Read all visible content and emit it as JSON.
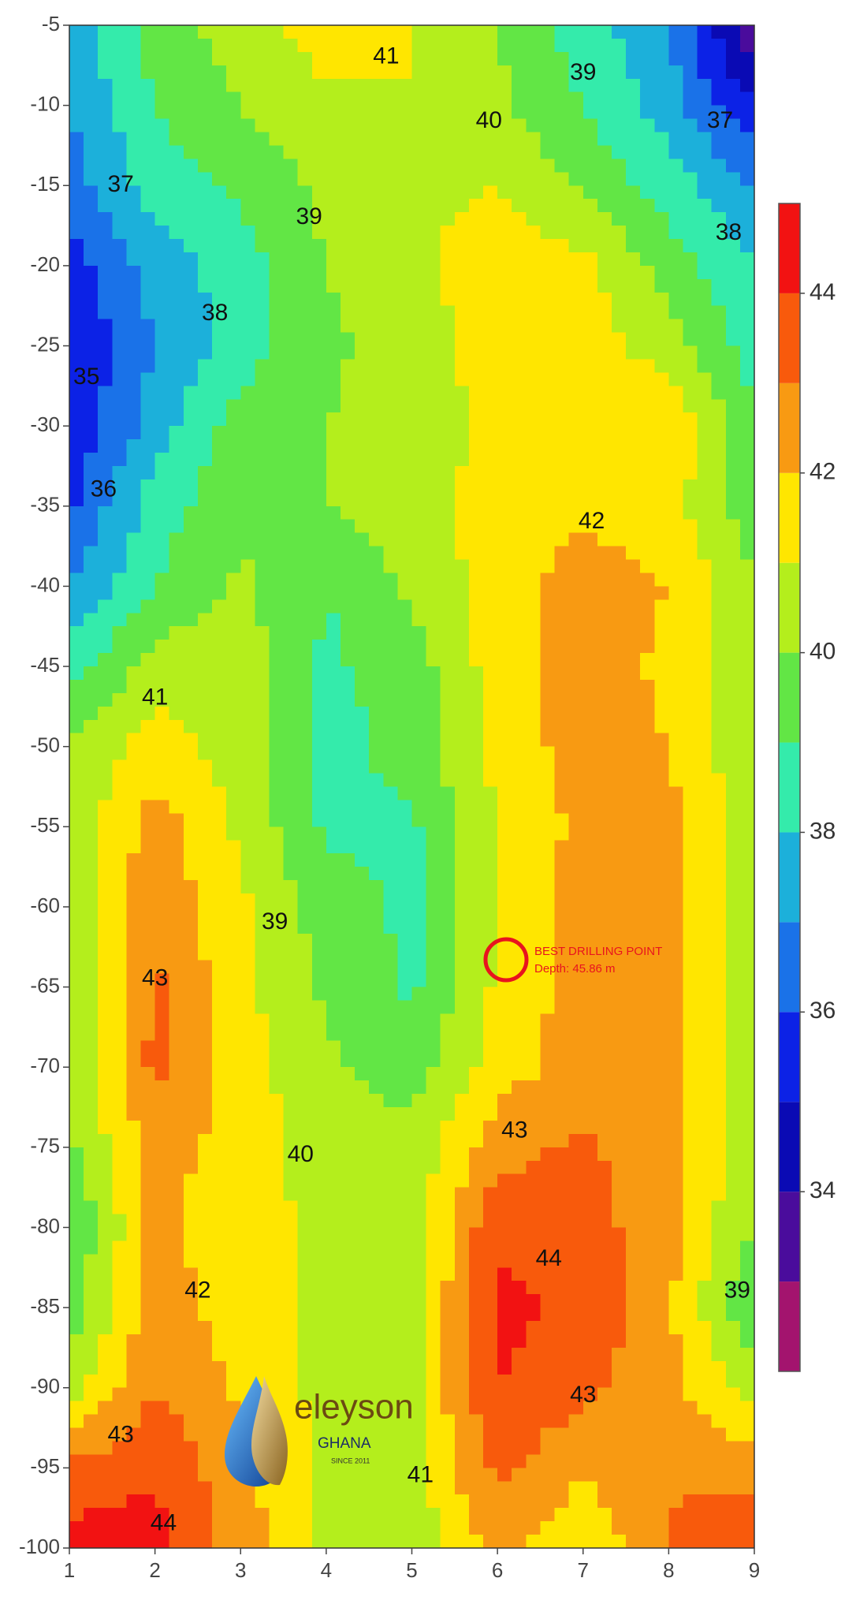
{
  "chart_data": {
    "type": "contour",
    "x": [
      1,
      2,
      3,
      4,
      5,
      6,
      7,
      8,
      9
    ],
    "y": [
      -5,
      -10,
      -15,
      -20,
      -25,
      -30,
      -35,
      -40,
      -45,
      -50,
      -55,
      -60,
      -65,
      -70,
      -75,
      -80,
      -85,
      -90,
      -95,
      -100
    ],
    "z": [
      [
        37.5,
        39.5,
        40.5,
        41.5,
        41,
        40,
        38.5,
        37,
        33
      ],
      [
        37,
        39,
        40,
        40.8,
        41,
        40.2,
        39,
        37.5,
        35
      ],
      [
        36.5,
        38.5,
        39.2,
        40.3,
        40.8,
        41,
        39.8,
        38.5,
        37
      ],
      [
        35.5,
        37.5,
        38.5,
        40,
        40.8,
        41.5,
        41.3,
        39.5,
        38
      ],
      [
        35,
        37,
        38.5,
        39.8,
        40.5,
        41.5,
        41.5,
        40.5,
        38.5
      ],
      [
        35.2,
        37.5,
        39.5,
        40,
        40.5,
        41.2,
        41.5,
        42,
        39
      ],
      [
        35.8,
        38.5,
        39.8,
        40,
        40.5,
        41.5,
        41.8,
        41.3,
        39.5
      ],
      [
        37,
        39,
        40.2,
        39,
        40.2,
        41.5,
        42.5,
        42,
        40
      ],
      [
        38.5,
        40.5,
        40.5,
        38.8,
        39.5,
        41.5,
        42.5,
        41.8,
        40.2
      ],
      [
        40,
        41.5,
        40.5,
        38.5,
        39.5,
        41.3,
        42.5,
        42,
        40.2
      ],
      [
        40.2,
        42.5,
        40.8,
        38.8,
        38.8,
        41,
        42.3,
        42.3,
        40.3
      ],
      [
        40.2,
        42.8,
        41.2,
        39.5,
        38.8,
        41,
        42.5,
        42.5,
        40.5
      ],
      [
        40,
        43.2,
        41.3,
        39.8,
        38.8,
        41.2,
        42.5,
        42.4,
        40.3
      ],
      [
        40,
        43.3,
        41.5,
        40.2,
        39.5,
        41.5,
        42.5,
        42.3,
        40.3
      ],
      [
        39.8,
        42.5,
        41.5,
        40.6,
        40.3,
        42.6,
        43.2,
        42.3,
        40.2
      ],
      [
        39,
        42.3,
        41.3,
        40.8,
        40.5,
        43.8,
        43.5,
        42.3,
        40
      ],
      [
        39.5,
        42.5,
        41.5,
        40.8,
        40.5,
        44.3,
        43.8,
        42.2,
        39
      ],
      [
        40.5,
        43,
        41.8,
        40.7,
        40.7,
        44,
        43.2,
        42.3,
        40.5
      ],
      [
        43.2,
        43.8,
        42.3,
        40.8,
        40.8,
        43.2,
        42.2,
        42.8,
        42.5
      ],
      [
        44.5,
        44.5,
        42.5,
        40.8,
        40,
        42.5,
        41,
        43.2,
        44.2
      ]
    ],
    "xlim": [
      1,
      9
    ],
    "ylim": [
      -100,
      -5
    ],
    "xticks": [
      1,
      2,
      3,
      4,
      5,
      6,
      7,
      8,
      9
    ],
    "yticks": [
      -5,
      -10,
      -15,
      -20,
      -25,
      -30,
      -35,
      -40,
      -45,
      -50,
      -55,
      -60,
      -65,
      -70,
      -75,
      -80,
      -85,
      -90,
      -95,
      -100
    ],
    "colorbar": {
      "levels": [
        32,
        33,
        34,
        35,
        36,
        37,
        38,
        39,
        40,
        41,
        42,
        43,
        44,
        45
      ],
      "colors": [
        "#a3146e",
        "#4a0c9c",
        "#0a0ab4",
        "#0c22e6",
        "#1a72e8",
        "#1cb0da",
        "#34ebab",
        "#62e645",
        "#b4ee1c",
        "#ffe600",
        "#f89a12",
        "#f85a0c",
        "#f21212"
      ],
      "ticks": [
        34,
        36,
        38,
        40,
        42,
        44
      ]
    },
    "contour_labels": [
      {
        "value": 41,
        "x": 4.7,
        "y": -7
      },
      {
        "value": 39,
        "x": 7,
        "y": -8
      },
      {
        "value": 40,
        "x": 5.9,
        "y": -11
      },
      {
        "value": 37,
        "x": 8.6,
        "y": -11
      },
      {
        "value": 37,
        "x": 1.6,
        "y": -15
      },
      {
        "value": 39,
        "x": 3.8,
        "y": -17
      },
      {
        "value": 38,
        "x": 8.7,
        "y": -18
      },
      {
        "value": 38,
        "x": 2.7,
        "y": -23
      },
      {
        "value": 35,
        "x": 1.2,
        "y": -27
      },
      {
        "value": 36,
        "x": 1.4,
        "y": -34
      },
      {
        "value": 42,
        "x": 7.1,
        "y": -36
      },
      {
        "value": 41,
        "x": 2,
        "y": -47
      },
      {
        "value": 39,
        "x": 3.4,
        "y": -61
      },
      {
        "value": 43,
        "x": 2,
        "y": -64.5
      },
      {
        "value": 40,
        "x": 3.7,
        "y": -75.5
      },
      {
        "value": 43,
        "x": 6.2,
        "y": -74
      },
      {
        "value": 44,
        "x": 6.6,
        "y": -82
      },
      {
        "value": 42,
        "x": 2.5,
        "y": -84
      },
      {
        "value": 39,
        "x": 8.8,
        "y": -84
      },
      {
        "value": 43,
        "x": 7,
        "y": -90.5
      },
      {
        "value": 43,
        "x": 1.6,
        "y": -93
      },
      {
        "value": 41,
        "x": 5.1,
        "y": -95.5
      },
      {
        "value": 44,
        "x": 2.1,
        "y": -98.5
      }
    ],
    "annotation": {
      "text": "BEST DRILLING POINT",
      "detail": "Depth: 45.86 m",
      "x": 6.1,
      "y": -63.3,
      "color": "#e8141e"
    }
  },
  "logo": {
    "name": "eleyson",
    "country": "GHANA",
    "tagline": "SINCE 2011"
  }
}
